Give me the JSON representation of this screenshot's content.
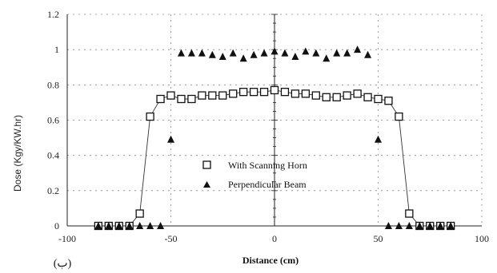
{
  "chart_data": {
    "type": "scatter",
    "xlabel": "Distance (cm)",
    "ylabel": "Dose (Kgy/KW.hr)",
    "xlim": [
      -100,
      100
    ],
    "ylim": [
      0,
      1.2
    ],
    "x_ticks": [
      "-100",
      "-50",
      "0",
      "50",
      "100"
    ],
    "y_ticks": [
      "0",
      "0.2",
      "0.4",
      "0.6",
      "0.8",
      "1",
      "1.2"
    ],
    "grid": "dotted",
    "legend_position": "center",
    "panel_label": "(ب)",
    "series": [
      {
        "name": "With Scanning Horn",
        "marker": "open-square",
        "connected": true,
        "x": [
          -85,
          -80,
          -75,
          -70,
          -65,
          -60,
          -55,
          -50,
          -45,
          -40,
          -35,
          -30,
          -25,
          -20,
          -15,
          -10,
          -5,
          0,
          5,
          10,
          15,
          20,
          25,
          30,
          35,
          40,
          45,
          50,
          55,
          60,
          65,
          70,
          75,
          80,
          85
        ],
        "y": [
          0,
          0,
          0,
          0,
          0.07,
          0.62,
          0.72,
          0.74,
          0.72,
          0.72,
          0.74,
          0.74,
          0.74,
          0.75,
          0.76,
          0.76,
          0.76,
          0.77,
          0.76,
          0.75,
          0.75,
          0.74,
          0.73,
          0.73,
          0.74,
          0.75,
          0.73,
          0.72,
          0.71,
          0.62,
          0.07,
          0,
          0,
          0,
          0
        ]
      },
      {
        "name": "Perpendicular Beam",
        "marker": "filled-triangle",
        "connected": false,
        "x": [
          -85,
          -80,
          -75,
          -70,
          -65,
          -60,
          -55,
          -50,
          -45,
          -40,
          -35,
          -30,
          -25,
          -20,
          -15,
          -10,
          -5,
          0,
          5,
          10,
          15,
          20,
          25,
          30,
          35,
          40,
          45,
          50,
          55,
          60,
          65,
          70,
          75,
          80,
          85
        ],
        "y": [
          0,
          0,
          0,
          0,
          0,
          0,
          0,
          0.49,
          0.98,
          0.98,
          0.98,
          0.97,
          0.96,
          0.98,
          0.95,
          0.97,
          0.98,
          0.99,
          0.98,
          0.96,
          0.99,
          0.98,
          0.95,
          0.98,
          0.98,
          1.0,
          0.97,
          0.49,
          0,
          0,
          0,
          0,
          0,
          0,
          0
        ]
      }
    ]
  }
}
